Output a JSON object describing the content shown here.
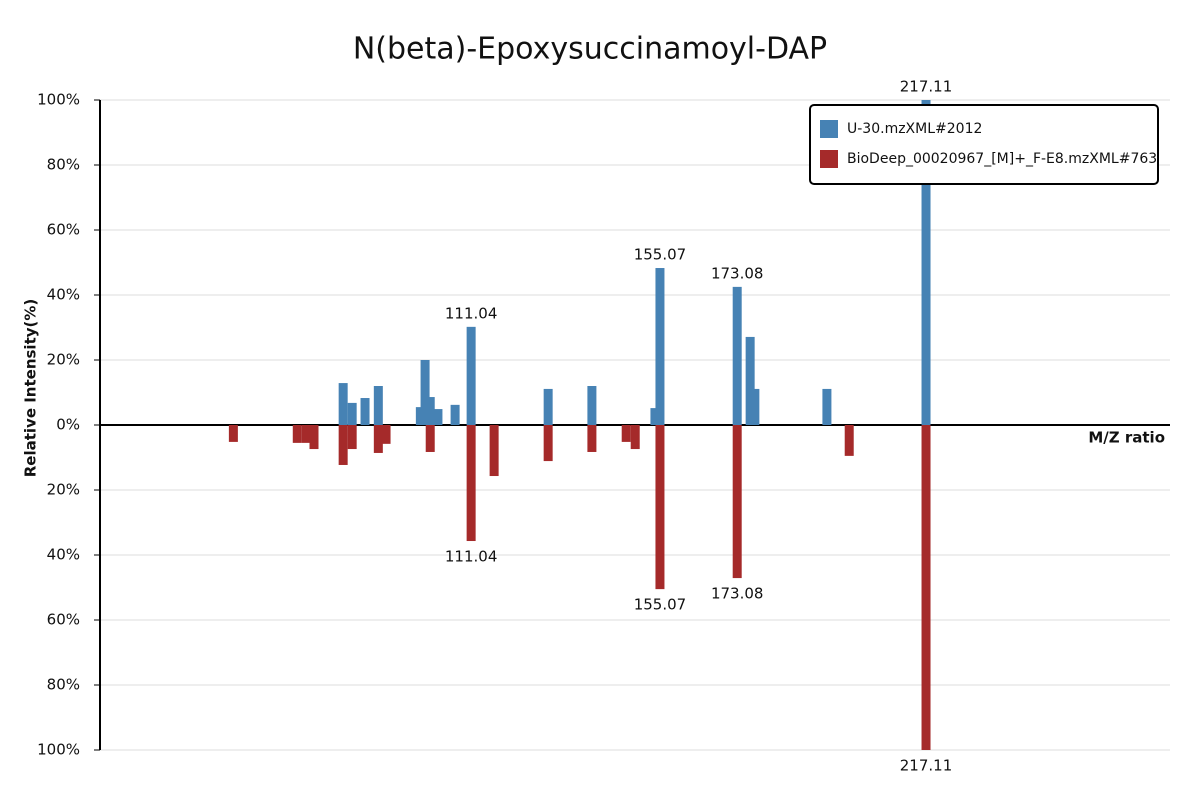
{
  "chart_data": {
    "type": "mirror-bar",
    "title": "N(beta)-Epoxysuccinamoyl-DAP",
    "x_label": "M/Z ratio",
    "y_label": "Relative Intensity(%)",
    "xlim": [
      24.5,
      274
    ],
    "ylim": [
      -100,
      100
    ],
    "yticks": [
      {
        "value": 100,
        "label": "100%"
      },
      {
        "value": 80,
        "label": "80%"
      },
      {
        "value": 60,
        "label": "60%"
      },
      {
        "value": 40,
        "label": "40%"
      },
      {
        "value": 20,
        "label": "20%"
      },
      {
        "value": 0,
        "label": "0%"
      },
      {
        "value": -20,
        "label": "20%"
      },
      {
        "value": -40,
        "label": "40%"
      },
      {
        "value": -60,
        "label": "60%"
      },
      {
        "value": -80,
        "label": "80%"
      },
      {
        "value": -100,
        "label": "100%"
      }
    ],
    "grid": true,
    "legend": "top-right",
    "series": [
      {
        "name": "U-30.mzXML#2012",
        "color": "#4682b4",
        "x": [
          81.2,
          83.3,
          86.3,
          89.4,
          99.2,
          100.3,
          101.5,
          103.3,
          107.3,
          111.04,
          129.0,
          139.2,
          153.9,
          155.07,
          173.08,
          176.1,
          177.2,
          194.0,
          217.11
        ],
        "values": [
          12.9,
          6.8,
          8.3,
          12,
          5.5,
          20,
          8.6,
          4.9,
          6.2,
          30.2,
          11.1,
          12,
          5.2,
          48.3,
          42.5,
          27.1,
          11.1,
          11.1,
          100
        ],
        "labeled": [
          9,
          13,
          14,
          18
        ]
      },
      {
        "name": "BioDeep_00020967_[M]+_F-E8.mzXML#763",
        "color": "#a52a2a",
        "x": [
          55.6,
          70.5,
          72.6,
          74.4,
          81.2,
          83.3,
          89.4,
          91.2,
          101.5,
          111.04,
          116.4,
          129.0,
          139.2,
          147.2,
          149.3,
          155.07,
          173.08,
          199.2,
          217.11
        ],
        "values": [
          -5.2,
          -5.5,
          -5.5,
          -7.4,
          -12.3,
          -7.4,
          -8.6,
          -5.8,
          -8.3,
          -35.7,
          -15.7,
          -11.1,
          -8.3,
          -5.2,
          -7.4,
          -50.5,
          -47.1,
          -9.5,
          -100
        ],
        "labeled": [
          9,
          15,
          16,
          18
        ]
      }
    ]
  }
}
